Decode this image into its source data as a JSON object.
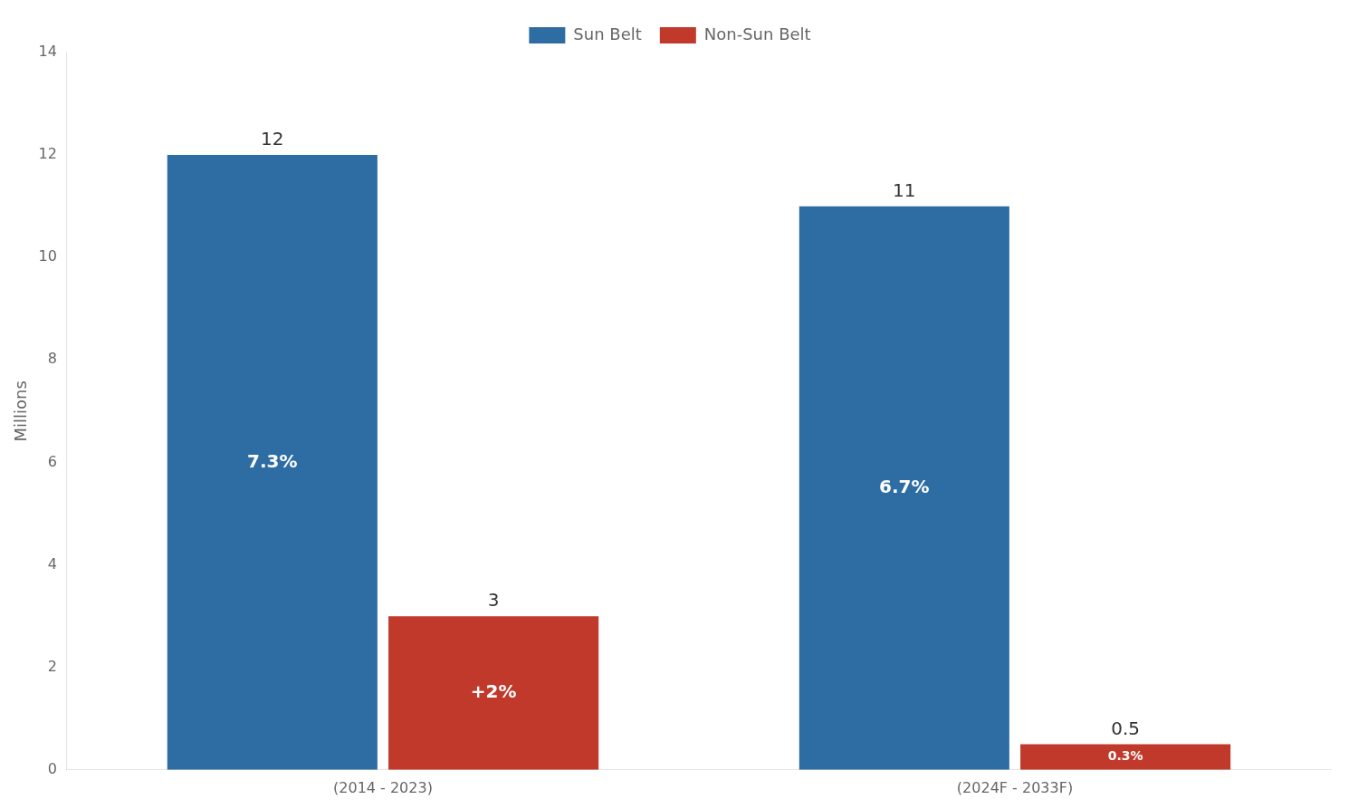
{
  "chart_data": {
    "type": "bar",
    "categories": [
      "(2014 - 2023)",
      "(2024F - 2033F)"
    ],
    "series": [
      {
        "name": "Sun Belt",
        "color": "#2E6DA4",
        "values": [
          12,
          11
        ],
        "annotations": [
          "7.3%",
          "6.7%"
        ]
      },
      {
        "name": "Non-Sun Belt",
        "color": "#C0392B",
        "values": [
          3,
          0.5
        ],
        "annotations": [
          "+2%",
          "0.3%"
        ]
      }
    ],
    "y_label": "Millions",
    "ylim": [
      0,
      14
    ],
    "yticks": [
      0,
      2,
      4,
      6,
      8,
      10,
      12,
      14
    ],
    "grid": false,
    "legend": "top",
    "data_labels": true
  }
}
